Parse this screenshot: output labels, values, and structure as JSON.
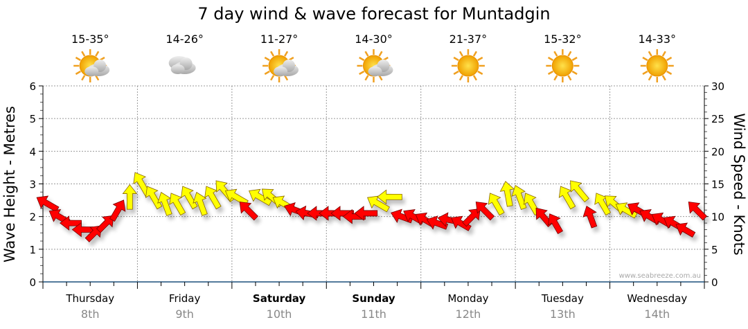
{
  "chart_data": {
    "type": "scatter",
    "title": "7 day wind & wave forecast for Muntadgin",
    "ylabel_left": "Wave Height - Metres",
    "ylabel_right": "Wind Speed - Knots",
    "ylim_left": [
      0,
      6
    ],
    "ylim_right": [
      0,
      30
    ],
    "yticks_left": [
      "0",
      "1",
      "2",
      "3",
      "4",
      "5",
      "6"
    ],
    "yticks_right": [
      "0",
      "5",
      "10",
      "15",
      "20",
      "25",
      "30"
    ],
    "grid": true,
    "watermark": "www.seabreeze.com.au",
    "days": [
      {
        "day": "Thursday",
        "date": "8th",
        "temp": "15-35°",
        "weather": "partly-cloudy",
        "weekend": false
      },
      {
        "day": "Friday",
        "date": "9th",
        "temp": "14-26°",
        "weather": "cloudy",
        "weekend": false
      },
      {
        "day": "Saturday",
        "date": "10th",
        "temp": "11-27°",
        "weather": "partly-cloudy",
        "weekend": true
      },
      {
        "day": "Sunday",
        "date": "11th",
        "temp": "14-30°",
        "weather": "partly-cloudy",
        "weekend": true
      },
      {
        "day": "Monday",
        "date": "12th",
        "temp": "21-37°",
        "weather": "sunny",
        "weekend": false
      },
      {
        "day": "Tuesday",
        "date": "13th",
        "temp": "15-32°",
        "weather": "sunny",
        "weekend": false
      },
      {
        "day": "Wednesday",
        "date": "14th",
        "temp": "14-33°",
        "weather": "sunny",
        "weekend": false
      }
    ],
    "wind_series": {
      "name": "Wind (knots, arrow direction in degrees)",
      "interval_hours": 3,
      "knots": [
        12,
        10,
        9,
        8,
        7.5,
        9,
        11,
        13,
        15,
        13,
        12,
        12,
        13,
        12,
        13,
        14,
        13,
        11,
        13,
        13,
        12,
        11,
        10.5,
        10.5,
        10.5,
        10.5,
        10,
        10.5,
        12,
        13,
        10,
        10,
        9.5,
        9,
        9.5,
        9,
        10,
        11,
        12,
        13.5,
        13,
        12,
        10,
        9,
        13,
        14,
        10,
        12,
        12,
        11,
        11,
        10,
        9.5,
        9,
        8,
        11
      ],
      "direction": [
        300,
        300,
        270,
        270,
        45,
        45,
        30,
        0,
        330,
        330,
        340,
        330,
        330,
        340,
        330,
        320,
        300,
        315,
        300,
        310,
        300,
        290,
        280,
        270,
        270,
        270,
        270,
        270,
        300,
        270,
        290,
        300,
        300,
        290,
        280,
        300,
        45,
        315,
        330,
        350,
        340,
        330,
        320,
        330,
        330,
        320,
        340,
        330,
        310,
        300,
        300,
        300,
        300,
        300,
        300,
        315
      ],
      "offshore_flag": [
        1,
        1,
        1,
        1,
        1,
        1,
        1,
        0,
        0,
        0,
        0,
        0,
        0,
        0,
        0,
        0,
        0,
        1,
        0,
        0,
        0,
        1,
        1,
        1,
        1,
        1,
        1,
        1,
        0,
        0,
        1,
        1,
        1,
        1,
        1,
        1,
        1,
        1,
        0,
        0,
        0,
        0,
        1,
        1,
        0,
        0,
        1,
        0,
        0,
        0,
        1,
        1,
        1,
        1,
        1,
        1
      ]
    },
    "colors": {
      "offshore": "#ff0000",
      "onshore": "#ffff00",
      "axis": "#1a4f7a"
    }
  }
}
